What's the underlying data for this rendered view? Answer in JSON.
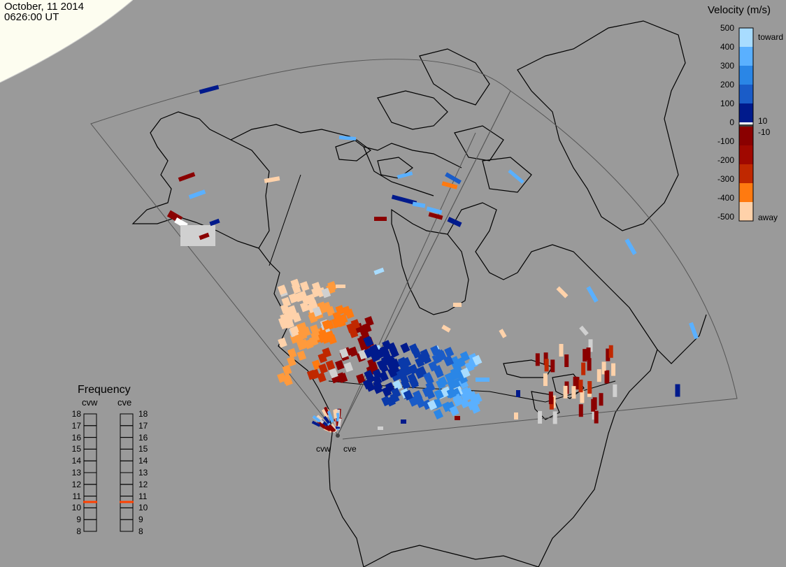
{
  "header": {
    "date": "October, 11 2014",
    "time": "0626:00 UT"
  },
  "colorbar": {
    "title": "Velocity (m/s)",
    "ticks": [
      "500",
      "400",
      "300",
      "200",
      "100",
      "0",
      "-100",
      "-200",
      "-300",
      "-400",
      "-500"
    ],
    "inner_labels": [
      "10",
      "-10"
    ],
    "toward_label": "toward",
    "away_label": "away",
    "colors": [
      "#ffd2aa",
      "#ff9a3c",
      "#ff7a10",
      "#e05000",
      "#c02800",
      "#a00800",
      "#8a0000",
      "#3c3c3c",
      "#ffffff",
      "#001a8c",
      "#0a3aaa",
      "#1a5cc8",
      "#2a86e6",
      "#5ab0ff",
      "#a8dcff"
    ]
  },
  "frequency": {
    "title": "Frequency",
    "columns": [
      {
        "label": "cvw",
        "value": 10.5
      },
      {
        "label": "cve",
        "value": 10.5
      }
    ],
    "ticks": [
      "18",
      "17",
      "16",
      "15",
      "14",
      "13",
      "12",
      "11",
      "10",
      "9",
      "8"
    ],
    "marker_color": "#ff4000"
  },
  "radars": [
    {
      "label": "cvw"
    },
    {
      "label": "cve"
    }
  ],
  "map": {
    "background": "#9a9a9a",
    "outline_color": "#000000",
    "fov_color": "#555555"
  }
}
